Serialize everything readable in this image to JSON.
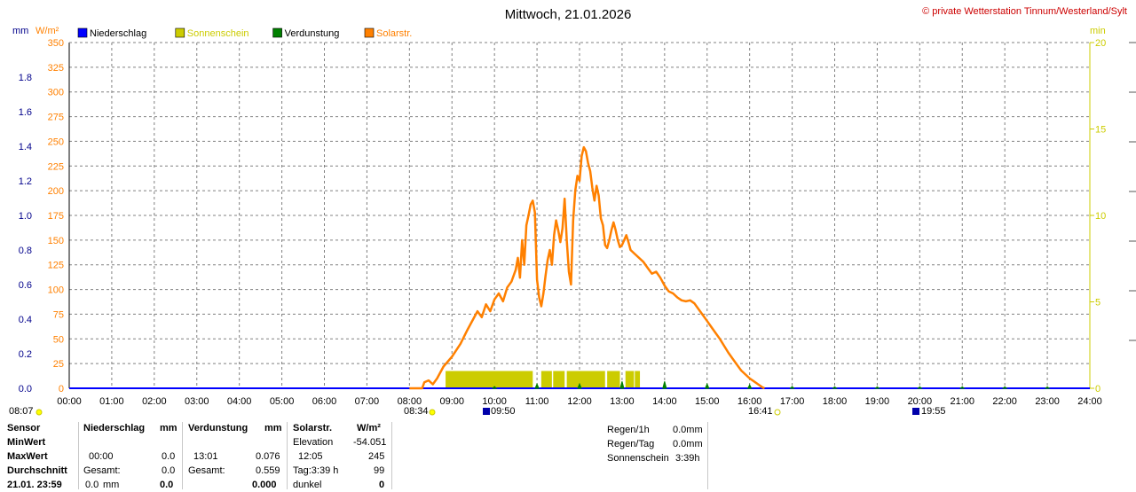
{
  "header": {
    "title": "Mittwoch, 21.01.2026",
    "copyright": "© private Wetterstation Tinnum/Westerland/Sylt"
  },
  "units": {
    "mm": "mm",
    "wm2": "W/m²",
    "min": "min"
  },
  "legend": [
    {
      "label": "Niederschlag",
      "color": "#0000ff",
      "text_color": "#000000"
    },
    {
      "label": "Sonnenschein",
      "color": "#cccc00",
      "text_color": "#cccc00"
    },
    {
      "label": "Verdunstung",
      "color": "#008000",
      "text_color": "#000000"
    },
    {
      "label": "Solarstr.",
      "color": "#ff8000",
      "text_color": "#ff8000"
    }
  ],
  "markers": {
    "left_time": "08:07",
    "sunrise": "08:34",
    "sunset": "16:41",
    "moonrise_or_event1": "09:50",
    "moonset_or_event2": "19:55"
  },
  "chart_data": {
    "type": "line",
    "x_ticks": [
      "00:00",
      "01:00",
      "02:00",
      "03:00",
      "04:00",
      "05:00",
      "06:00",
      "07:00",
      "08:00",
      "09:00",
      "10:00",
      "11:00",
      "12:00",
      "13:00",
      "14:00",
      "15:00",
      "16:00",
      "17:00",
      "18:00",
      "19:00",
      "20:00",
      "21:00",
      "22:00",
      "23:00",
      "24:00"
    ],
    "y_left_mm_ticks": [
      "0.0",
      "0.2",
      "0.4",
      "0.6",
      "0.8",
      "1.0",
      "1.2",
      "1.4",
      "1.6",
      "1.8"
    ],
    "y_left_mm_range": [
      0,
      2
    ],
    "y_wm2_ticks": [
      "0",
      "25",
      "50",
      "75",
      "100",
      "125",
      "150",
      "175",
      "200",
      "225",
      "250",
      "275",
      "300",
      "325",
      "350"
    ],
    "y_wm2_range": [
      0,
      350
    ],
    "y_min_ticks": [
      "0",
      "5",
      "10",
      "15",
      "20"
    ],
    "y_min_range": [
      0,
      20
    ],
    "solar": {
      "name": "Solarstr.",
      "color": "#ff8000",
      "points": [
        [
          8.0,
          0
        ],
        [
          8.3,
          0
        ],
        [
          8.35,
          6
        ],
        [
          8.45,
          8
        ],
        [
          8.55,
          4
        ],
        [
          8.65,
          10
        ],
        [
          8.8,
          22
        ],
        [
          9.0,
          32
        ],
        [
          9.2,
          45
        ],
        [
          9.35,
          58
        ],
        [
          9.5,
          70
        ],
        [
          9.6,
          78
        ],
        [
          9.7,
          72
        ],
        [
          9.8,
          85
        ],
        [
          9.9,
          78
        ],
        [
          10.0,
          90
        ],
        [
          10.1,
          96
        ],
        [
          10.2,
          88
        ],
        [
          10.3,
          102
        ],
        [
          10.4,
          108
        ],
        [
          10.5,
          120
        ],
        [
          10.55,
          132
        ],
        [
          10.6,
          112
        ],
        [
          10.65,
          150
        ],
        [
          10.7,
          125
        ],
        [
          10.75,
          165
        ],
        [
          10.8,
          175
        ],
        [
          10.85,
          186
        ],
        [
          10.9,
          190
        ],
        [
          10.95,
          178
        ],
        [
          11.0,
          110
        ],
        [
          11.05,
          92
        ],
        [
          11.1,
          83
        ],
        [
          11.15,
          96
        ],
        [
          11.2,
          114
        ],
        [
          11.25,
          130
        ],
        [
          11.3,
          140
        ],
        [
          11.35,
          125
        ],
        [
          11.4,
          155
        ],
        [
          11.45,
          170
        ],
        [
          11.5,
          160
        ],
        [
          11.55,
          148
        ],
        [
          11.6,
          162
        ],
        [
          11.65,
          192
        ],
        [
          11.7,
          150
        ],
        [
          11.75,
          118
        ],
        [
          11.8,
          105
        ],
        [
          11.85,
          170
        ],
        [
          11.9,
          200
        ],
        [
          11.95,
          215
        ],
        [
          12.0,
          210
        ],
        [
          12.05,
          235
        ],
        [
          12.1,
          244
        ],
        [
          12.15,
          240
        ],
        [
          12.2,
          228
        ],
        [
          12.25,
          220
        ],
        [
          12.3,
          203
        ],
        [
          12.35,
          190
        ],
        [
          12.4,
          205
        ],
        [
          12.45,
          195
        ],
        [
          12.5,
          172
        ],
        [
          12.55,
          165
        ],
        [
          12.6,
          145
        ],
        [
          12.65,
          142
        ],
        [
          12.7,
          150
        ],
        [
          12.75,
          160
        ],
        [
          12.8,
          168
        ],
        [
          12.85,
          160
        ],
        [
          12.9,
          150
        ],
        [
          12.95,
          143
        ],
        [
          13.0,
          145
        ],
        [
          13.05,
          150
        ],
        [
          13.1,
          155
        ],
        [
          13.15,
          148
        ],
        [
          13.2,
          140
        ],
        [
          13.3,
          136
        ],
        [
          13.4,
          132
        ],
        [
          13.5,
          128
        ],
        [
          13.6,
          122
        ],
        [
          13.7,
          116
        ],
        [
          13.8,
          118
        ],
        [
          13.9,
          112
        ],
        [
          14.0,
          104
        ],
        [
          14.1,
          98
        ],
        [
          14.2,
          96
        ],
        [
          14.3,
          92
        ],
        [
          14.4,
          89
        ],
        [
          14.5,
          88
        ],
        [
          14.6,
          89
        ],
        [
          14.7,
          86
        ],
        [
          14.8,
          80
        ],
        [
          14.9,
          74
        ],
        [
          15.0,
          68
        ],
        [
          15.1,
          62
        ],
        [
          15.2,
          56
        ],
        [
          15.3,
          50
        ],
        [
          15.4,
          43
        ],
        [
          15.5,
          36
        ],
        [
          15.6,
          30
        ],
        [
          15.7,
          24
        ],
        [
          15.8,
          18
        ],
        [
          15.9,
          14
        ],
        [
          16.0,
          10
        ],
        [
          16.1,
          7
        ],
        [
          16.2,
          4
        ],
        [
          16.3,
          1
        ],
        [
          16.35,
          0
        ],
        [
          24.0,
          0
        ]
      ]
    },
    "sunshine": {
      "name": "Sonnenschein",
      "color": "#cccc00",
      "unit": "min",
      "bars": [
        [
          8.85,
          10.9,
          1.0
        ],
        [
          11.1,
          11.35,
          1.0
        ],
        [
          11.38,
          11.65,
          1.0
        ],
        [
          11.7,
          12.6,
          1.0
        ],
        [
          12.65,
          12.95,
          1.0
        ],
        [
          13.08,
          13.28,
          1.0
        ],
        [
          13.3,
          13.42,
          1.0
        ]
      ]
    },
    "evaporation": {
      "name": "Verdunstung",
      "color": "#008000",
      "unit": "mm",
      "spikes": [
        [
          10.0,
          0.01
        ],
        [
          11.0,
          0.025
        ],
        [
          12.0,
          0.025
        ],
        [
          13.0,
          0.04
        ],
        [
          14.0,
          0.04
        ],
        [
          15.0,
          0.025
        ],
        [
          16.0,
          0.02
        ],
        [
          17.0,
          0.01
        ],
        [
          18.0,
          0.008
        ],
        [
          19.0,
          0.008
        ],
        [
          20.0,
          0.008
        ],
        [
          21.0,
          0.008
        ],
        [
          22.0,
          0.008
        ],
        [
          23.0,
          0.008
        ]
      ]
    },
    "precipitation": {
      "name": "Niederschlag",
      "color": "#0000ff",
      "values": []
    }
  },
  "table": {
    "col1": {
      "row1": "Sensor",
      "row2": "MinWert",
      "row3": "MaxWert",
      "row4": "Durchschnitt",
      "row5": "21.01. 23:59"
    },
    "niederschlag": {
      "header": "Niederschlag",
      "unit": "mm",
      "max_time": "00:00",
      "max_val": "0.0",
      "label_sum": "Gesamt:",
      "sum": "0.0",
      "last_val": "0.0",
      "last_unit": "mm",
      "last_bold": "0.0"
    },
    "verdunstung": {
      "header": "Verdunstung",
      "unit": "mm",
      "max_time": "13:01",
      "max_val": "0.076",
      "label_sum": "Gesamt:",
      "sum": "0.559",
      "last_bold": "0.000"
    },
    "solar": {
      "header": "Solarstr.",
      "unit": "W/m²",
      "elev_label": "Elevation",
      "elev_val": "-54.051",
      "max_time": "12:05",
      "max_val": "245",
      "day_label": "Tag:3:39 h",
      "day_val": "99",
      "dark_label": "dunkel",
      "dark_val": "0"
    },
    "extra": {
      "rain1h_label": "Regen/1h",
      "rain1h_val": "0.0mm",
      "rainday_label": "Regen/Tag",
      "rainday_val": "0.0mm",
      "sun_label": "Sonnenschein",
      "sun_val": "3:39h"
    }
  }
}
